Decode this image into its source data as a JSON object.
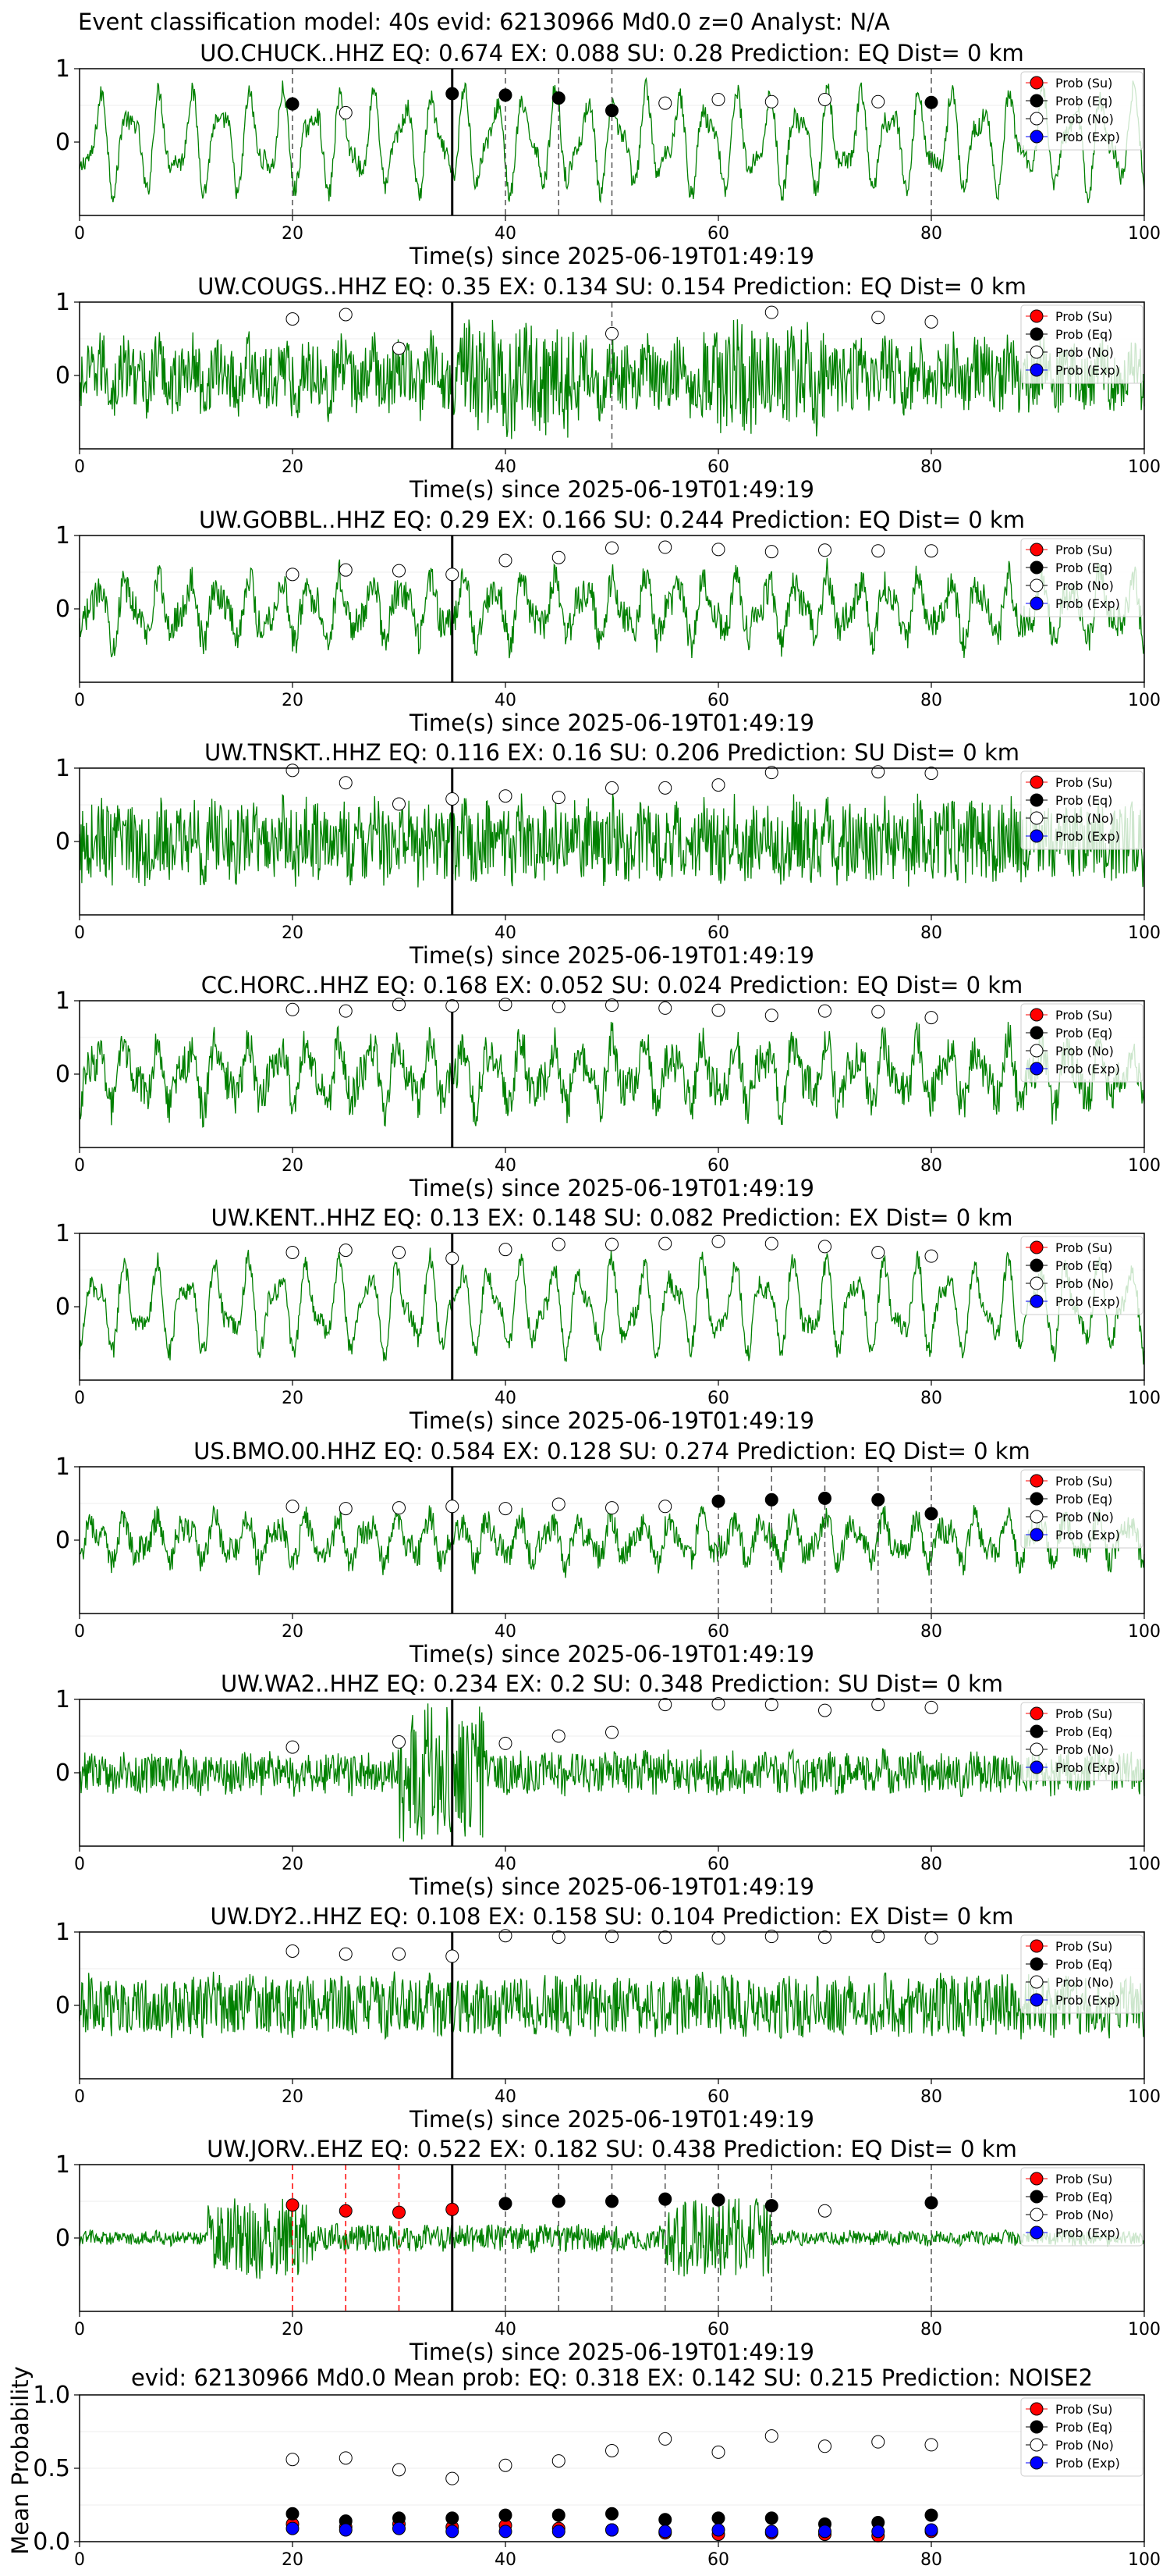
{
  "figure_title": "Event classification model: 40s evid: 62130966 Md0.0 z=0 Analyst: N/A",
  "legend_labels": [
    "Prob (Su)",
    "Prob (Eq)",
    "Prob (No)",
    "Prob (Exp)"
  ],
  "colors": {
    "trace": "#008000",
    "su": "#ff0000",
    "eq": "#000000",
    "no": "#ffffff",
    "exp": "#0000ff",
    "eq_pick_line": "#555555",
    "su_pick_line": "#ff0000",
    "origin_line": "#000000"
  },
  "chart_data": [
    {
      "type": "line",
      "station": "UO.CHUCK..HHZ",
      "title": "UO.CHUCK..HHZ   EQ: 0.674  EX: 0.088  SU: 0.28   Prediction: EQ    Dist= 0 km",
      "xlabel": "Time(s) since 2025-06-19T01:49:19",
      "xlim": [
        0,
        100
      ],
      "ylim": [
        -1,
        1
      ],
      "xticks": [
        "0",
        "20",
        "40",
        "60",
        "80",
        "100"
      ],
      "yticks": [
        "1",
        "0"
      ],
      "noise": 0.15,
      "osc": 0.55,
      "origin_line": 35,
      "eq_picks": [
        20,
        35,
        40,
        45,
        50,
        80
      ],
      "su_picks": [],
      "markers": [
        {
          "x": 20,
          "y": 0.52,
          "cls": "eq"
        },
        {
          "x": 25,
          "y": 0.4,
          "cls": "no"
        },
        {
          "x": 35,
          "y": 0.66,
          "cls": "eq"
        },
        {
          "x": 40,
          "y": 0.64,
          "cls": "eq"
        },
        {
          "x": 45,
          "y": 0.6,
          "cls": "eq"
        },
        {
          "x": 50,
          "y": 0.43,
          "cls": "eq"
        },
        {
          "x": 55,
          "y": 0.53,
          "cls": "no"
        },
        {
          "x": 60,
          "y": 0.58,
          "cls": "no"
        },
        {
          "x": 65,
          "y": 0.55,
          "cls": "no"
        },
        {
          "x": 70,
          "y": 0.58,
          "cls": "no"
        },
        {
          "x": 75,
          "y": 0.55,
          "cls": "no"
        },
        {
          "x": 80,
          "y": 0.54,
          "cls": "eq"
        }
      ]
    },
    {
      "type": "line",
      "station": "UW.COUGS..HHZ",
      "title": "UW.COUGS..HHZ   EQ: 0.35  EX: 0.134  SU: 0.154   Prediction: EQ    Dist= 0 km",
      "xlabel": "Time(s) since 2025-06-19T01:49:19",
      "xlim": [
        0,
        100
      ],
      "ylim": [
        -1,
        1
      ],
      "xticks": [
        "0",
        "20",
        "40",
        "60",
        "80",
        "100"
      ],
      "yticks": [
        "1",
        "0"
      ],
      "noise": 0.5,
      "osc": 0.15,
      "origin_line": 35,
      "eq_picks": [
        50
      ],
      "su_picks": [],
      "markers": [
        {
          "x": 20,
          "y": 0.77,
          "cls": "no"
        },
        {
          "x": 25,
          "y": 0.83,
          "cls": "no"
        },
        {
          "x": 30,
          "y": 0.37,
          "cls": "no"
        },
        {
          "x": 50,
          "y": 0.57,
          "cls": "no"
        },
        {
          "x": 65,
          "y": 0.86,
          "cls": "no"
        },
        {
          "x": 75,
          "y": 0.79,
          "cls": "no"
        },
        {
          "x": 80,
          "y": 0.73,
          "cls": "no"
        }
      ]
    },
    {
      "type": "line",
      "station": "UW.GOBBL..HHZ",
      "title": "UW.GOBBL..HHZ   EQ: 0.29  EX: 0.166  SU: 0.244   Prediction: EQ    Dist= 0 km",
      "xlabel": "Time(s) since 2025-06-19T01:49:19",
      "xlim": [
        0,
        100
      ],
      "ylim": [
        -1,
        1
      ],
      "xticks": [
        "0",
        "20",
        "40",
        "60",
        "80",
        "100"
      ],
      "yticks": [
        "1",
        "0"
      ],
      "noise": 0.25,
      "osc": 0.35,
      "origin_line": 35,
      "eq_picks": [],
      "su_picks": [],
      "markers": [
        {
          "x": 20,
          "y": 0.47,
          "cls": "no"
        },
        {
          "x": 25,
          "y": 0.53,
          "cls": "no"
        },
        {
          "x": 30,
          "y": 0.52,
          "cls": "no"
        },
        {
          "x": 35,
          "y": 0.47,
          "cls": "no"
        },
        {
          "x": 40,
          "y": 0.66,
          "cls": "no"
        },
        {
          "x": 45,
          "y": 0.7,
          "cls": "no"
        },
        {
          "x": 50,
          "y": 0.83,
          "cls": "no"
        },
        {
          "x": 55,
          "y": 0.84,
          "cls": "no"
        },
        {
          "x": 60,
          "y": 0.81,
          "cls": "no"
        },
        {
          "x": 65,
          "y": 0.78,
          "cls": "no"
        },
        {
          "x": 70,
          "y": 0.8,
          "cls": "no"
        },
        {
          "x": 75,
          "y": 0.79,
          "cls": "no"
        },
        {
          "x": 80,
          "y": 0.79,
          "cls": "no"
        }
      ]
    },
    {
      "type": "line",
      "station": "UW.TNSKT..HHZ",
      "title": "UW.TNSKT..HHZ   EQ: 0.116  EX: 0.16  SU: 0.206   Prediction: SU    Dist= 0 km",
      "xlabel": "Time(s) since 2025-06-19T01:49:19",
      "xlim": [
        0,
        100
      ],
      "ylim": [
        -1,
        1
      ],
      "xticks": [
        "0",
        "20",
        "40",
        "60",
        "80",
        "100"
      ],
      "yticks": [
        "1",
        "0"
      ],
      "noise": 0.6,
      "osc": 0.1,
      "origin_line": 35,
      "eq_picks": [],
      "su_picks": [],
      "markers": [
        {
          "x": 20,
          "y": 0.97,
          "cls": "no"
        },
        {
          "x": 25,
          "y": 0.8,
          "cls": "no"
        },
        {
          "x": 30,
          "y": 0.51,
          "cls": "no"
        },
        {
          "x": 35,
          "y": 0.58,
          "cls": "no"
        },
        {
          "x": 40,
          "y": 0.62,
          "cls": "no"
        },
        {
          "x": 45,
          "y": 0.6,
          "cls": "no"
        },
        {
          "x": 50,
          "y": 0.73,
          "cls": "no"
        },
        {
          "x": 55,
          "y": 0.73,
          "cls": "no"
        },
        {
          "x": 60,
          "y": 0.77,
          "cls": "no"
        },
        {
          "x": 65,
          "y": 0.94,
          "cls": "no"
        },
        {
          "x": 75,
          "y": 0.95,
          "cls": "no"
        },
        {
          "x": 80,
          "y": 0.93,
          "cls": "no"
        }
      ]
    },
    {
      "type": "line",
      "station": "CC.HORC..HHZ",
      "title": "CC.HORC..HHZ   EQ: 0.168  EX: 0.052  SU: 0.024   Prediction: EQ    Dist= 0 km",
      "xlabel": "Time(s) since 2025-06-19T01:49:19",
      "xlim": [
        0,
        100
      ],
      "ylim": [
        -1,
        1
      ],
      "xticks": [
        "0",
        "20",
        "40",
        "60",
        "80",
        "100"
      ],
      "yticks": [
        "1",
        "0"
      ],
      "noise": 0.3,
      "osc": 0.35,
      "origin_line": 35,
      "eq_picks": [],
      "su_picks": [],
      "markers": [
        {
          "x": 20,
          "y": 0.88,
          "cls": "no"
        },
        {
          "x": 25,
          "y": 0.86,
          "cls": "no"
        },
        {
          "x": 30,
          "y": 0.95,
          "cls": "no"
        },
        {
          "x": 35,
          "y": 0.93,
          "cls": "no"
        },
        {
          "x": 40,
          "y": 0.95,
          "cls": "no"
        },
        {
          "x": 45,
          "y": 0.92,
          "cls": "no"
        },
        {
          "x": 50,
          "y": 0.94,
          "cls": "no"
        },
        {
          "x": 55,
          "y": 0.9,
          "cls": "no"
        },
        {
          "x": 60,
          "y": 0.87,
          "cls": "no"
        },
        {
          "x": 65,
          "y": 0.8,
          "cls": "no"
        },
        {
          "x": 70,
          "y": 0.86,
          "cls": "no"
        },
        {
          "x": 75,
          "y": 0.85,
          "cls": "no"
        },
        {
          "x": 80,
          "y": 0.77,
          "cls": "no"
        }
      ]
    },
    {
      "type": "line",
      "station": "UW.KENT..HHZ",
      "title": "UW.KENT..HHZ   EQ: 0.13  EX: 0.148  SU: 0.082   Prediction: EX    Dist= 0 km",
      "xlabel": "Time(s) since 2025-06-19T01:49:19",
      "xlim": [
        0,
        100
      ],
      "ylim": [
        -1,
        1
      ],
      "xticks": [
        "0",
        "20",
        "40",
        "60",
        "80",
        "100"
      ],
      "yticks": [
        "1",
        "0"
      ],
      "noise": 0.15,
      "osc": 0.5,
      "origin_line": 35,
      "eq_picks": [],
      "su_picks": [],
      "markers": [
        {
          "x": 20,
          "y": 0.74,
          "cls": "no"
        },
        {
          "x": 25,
          "y": 0.77,
          "cls": "no"
        },
        {
          "x": 30,
          "y": 0.74,
          "cls": "no"
        },
        {
          "x": 35,
          "y": 0.66,
          "cls": "no"
        },
        {
          "x": 40,
          "y": 0.78,
          "cls": "no"
        },
        {
          "x": 45,
          "y": 0.85,
          "cls": "no"
        },
        {
          "x": 50,
          "y": 0.85,
          "cls": "no"
        },
        {
          "x": 55,
          "y": 0.86,
          "cls": "no"
        },
        {
          "x": 60,
          "y": 0.89,
          "cls": "no"
        },
        {
          "x": 65,
          "y": 0.86,
          "cls": "no"
        },
        {
          "x": 70,
          "y": 0.82,
          "cls": "no"
        },
        {
          "x": 75,
          "y": 0.74,
          "cls": "no"
        },
        {
          "x": 80,
          "y": 0.69,
          "cls": "no"
        }
      ]
    },
    {
      "type": "line",
      "station": "US.BMO.00.HHZ",
      "title": "US.BMO.00.HHZ   EQ: 0.584  EX: 0.128  SU: 0.274   Prediction: EQ    Dist= 0 km",
      "xlabel": "Time(s) since 2025-06-19T01:49:19",
      "xlim": [
        0,
        100
      ],
      "ylim": [
        -1,
        1
      ],
      "xticks": [
        "0",
        "20",
        "40",
        "60",
        "80",
        "100"
      ],
      "yticks": [
        "1",
        "0"
      ],
      "noise": 0.2,
      "osc": 0.25,
      "origin_line": 35,
      "eq_picks": [
        60,
        65,
        70,
        75,
        80
      ],
      "su_picks": [],
      "markers": [
        {
          "x": 20,
          "y": 0.46,
          "cls": "no"
        },
        {
          "x": 25,
          "y": 0.43,
          "cls": "no"
        },
        {
          "x": 30,
          "y": 0.44,
          "cls": "no"
        },
        {
          "x": 35,
          "y": 0.46,
          "cls": "no"
        },
        {
          "x": 40,
          "y": 0.43,
          "cls": "no"
        },
        {
          "x": 45,
          "y": 0.49,
          "cls": "no"
        },
        {
          "x": 50,
          "y": 0.44,
          "cls": "no"
        },
        {
          "x": 55,
          "y": 0.46,
          "cls": "no"
        },
        {
          "x": 60,
          "y": 0.53,
          "cls": "eq"
        },
        {
          "x": 65,
          "y": 0.55,
          "cls": "eq"
        },
        {
          "x": 70,
          "y": 0.57,
          "cls": "eq"
        },
        {
          "x": 75,
          "y": 0.55,
          "cls": "eq"
        },
        {
          "x": 80,
          "y": 0.36,
          "cls": "eq"
        }
      ]
    },
    {
      "type": "line",
      "station": "UW.WA2..HHZ",
      "title": "UW.WA2..HHZ   EQ: 0.234  EX: 0.2  SU: 0.348   Prediction: SU    Dist= 0 km",
      "xlabel": "Time(s) since 2025-06-19T01:49:19",
      "xlim": [
        0,
        100
      ],
      "ylim": [
        -1,
        1
      ],
      "xticks": [
        "0",
        "20",
        "40",
        "60",
        "80",
        "100"
      ],
      "yticks": [
        "1",
        "0"
      ],
      "noise": 0.3,
      "osc": 0.05,
      "origin_line": 35,
      "eq_picks": [],
      "su_picks": [],
      "markers": [
        {
          "x": 20,
          "y": 0.35,
          "cls": "no"
        },
        {
          "x": 30,
          "y": 0.42,
          "cls": "no"
        },
        {
          "x": 40,
          "y": 0.4,
          "cls": "no"
        },
        {
          "x": 45,
          "y": 0.5,
          "cls": "no"
        },
        {
          "x": 50,
          "y": 0.55,
          "cls": "no"
        },
        {
          "x": 55,
          "y": 0.93,
          "cls": "no"
        },
        {
          "x": 60,
          "y": 0.94,
          "cls": "no"
        },
        {
          "x": 65,
          "y": 0.93,
          "cls": "no"
        },
        {
          "x": 70,
          "y": 0.85,
          "cls": "no"
        },
        {
          "x": 75,
          "y": 0.93,
          "cls": "no"
        },
        {
          "x": 80,
          "y": 0.89,
          "cls": "no"
        }
      ]
    },
    {
      "type": "line",
      "station": "UW.DY2..HHZ",
      "title": "UW.DY2..HHZ   EQ: 0.108  EX: 0.158  SU: 0.104   Prediction: EX    Dist= 0 km",
      "xlabel": "Time(s) since 2025-06-19T01:49:19",
      "xlim": [
        0,
        100
      ],
      "ylim": [
        -1,
        1
      ],
      "xticks": [
        "0",
        "20",
        "40",
        "60",
        "80",
        "100"
      ],
      "yticks": [
        "1",
        "0"
      ],
      "noise": 0.45,
      "osc": 0.05,
      "origin_line": 35,
      "eq_picks": [],
      "su_picks": [],
      "markers": [
        {
          "x": 20,
          "y": 0.74,
          "cls": "no"
        },
        {
          "x": 25,
          "y": 0.7,
          "cls": "no"
        },
        {
          "x": 30,
          "y": 0.7,
          "cls": "no"
        },
        {
          "x": 35,
          "y": 0.67,
          "cls": "no"
        },
        {
          "x": 40,
          "y": 0.95,
          "cls": "no"
        },
        {
          "x": 45,
          "y": 0.93,
          "cls": "no"
        },
        {
          "x": 50,
          "y": 0.94,
          "cls": "no"
        },
        {
          "x": 55,
          "y": 0.93,
          "cls": "no"
        },
        {
          "x": 60,
          "y": 0.92,
          "cls": "no"
        },
        {
          "x": 65,
          "y": 0.94,
          "cls": "no"
        },
        {
          "x": 70,
          "y": 0.93,
          "cls": "no"
        },
        {
          "x": 75,
          "y": 0.94,
          "cls": "no"
        },
        {
          "x": 80,
          "y": 0.92,
          "cls": "no"
        }
      ]
    },
    {
      "type": "line",
      "station": "UW.JORV..EHZ",
      "title": "UW.JORV..EHZ   EQ: 0.522  EX: 0.182  SU: 0.438   Prediction: EQ    Dist= 0 km",
      "xlabel": "Time(s) since 2025-06-19T01:49:19",
      "xlim": [
        0,
        100
      ],
      "ylim": [
        -1,
        1
      ],
      "xticks": [
        "0",
        "20",
        "40",
        "60",
        "80",
        "100"
      ],
      "yticks": [
        "1",
        "0"
      ],
      "noise": 0.1,
      "osc": 0.02,
      "origin_line": 35,
      "eq_picks": [
        40,
        45,
        50,
        55,
        60,
        65,
        80
      ],
      "su_picks": [
        20,
        25,
        30
      ],
      "markers": [
        {
          "x": 20,
          "y": 0.45,
          "cls": "su"
        },
        {
          "x": 25,
          "y": 0.37,
          "cls": "su"
        },
        {
          "x": 30,
          "y": 0.35,
          "cls": "su"
        },
        {
          "x": 35,
          "y": 0.39,
          "cls": "su"
        },
        {
          "x": 40,
          "y": 0.47,
          "cls": "eq"
        },
        {
          "x": 45,
          "y": 0.5,
          "cls": "eq"
        },
        {
          "x": 50,
          "y": 0.5,
          "cls": "eq"
        },
        {
          "x": 55,
          "y": 0.53,
          "cls": "eq"
        },
        {
          "x": 60,
          "y": 0.52,
          "cls": "eq"
        },
        {
          "x": 65,
          "y": 0.44,
          "cls": "eq"
        },
        {
          "x": 70,
          "y": 0.37,
          "cls": "no"
        },
        {
          "x": 80,
          "y": 0.48,
          "cls": "eq"
        }
      ]
    },
    {
      "type": "scatter",
      "title": "evid: 62130966  Md0.0   Mean prob:   EQ: 0.318  EX: 0.142  SU: 0.215   Prediction: NOISE2",
      "ylabel": "Mean Probability",
      "xlim": [
        0,
        100
      ],
      "ylim": [
        0,
        1
      ],
      "xticks": [
        "0",
        "20",
        "40",
        "60",
        "80",
        "100"
      ],
      "yticks": [
        "0.0",
        "0.5",
        "1.0"
      ],
      "x": [
        20,
        25,
        30,
        35,
        40,
        45,
        50,
        55,
        60,
        65,
        70,
        75,
        80
      ],
      "series": [
        {
          "name": "Prob (Su)",
          "key": "su",
          "values": [
            0.12,
            0.1,
            0.12,
            0.1,
            0.11,
            0.09,
            0.08,
            0.06,
            0.05,
            0.06,
            0.05,
            0.04,
            0.07
          ]
        },
        {
          "name": "Prob (Eq)",
          "key": "eq",
          "values": [
            0.19,
            0.14,
            0.16,
            0.16,
            0.18,
            0.18,
            0.19,
            0.15,
            0.16,
            0.16,
            0.12,
            0.13,
            0.18
          ]
        },
        {
          "name": "Prob (No)",
          "key": "no",
          "values": [
            0.56,
            0.57,
            0.49,
            0.43,
            0.52,
            0.55,
            0.62,
            0.7,
            0.61,
            0.72,
            0.65,
            0.68,
            0.66
          ]
        },
        {
          "name": "Prob (Exp)",
          "key": "exp",
          "values": [
            0.09,
            0.08,
            0.09,
            0.07,
            0.07,
            0.07,
            0.08,
            0.07,
            0.08,
            0.07,
            0.07,
            0.07,
            0.08
          ]
        }
      ]
    }
  ]
}
